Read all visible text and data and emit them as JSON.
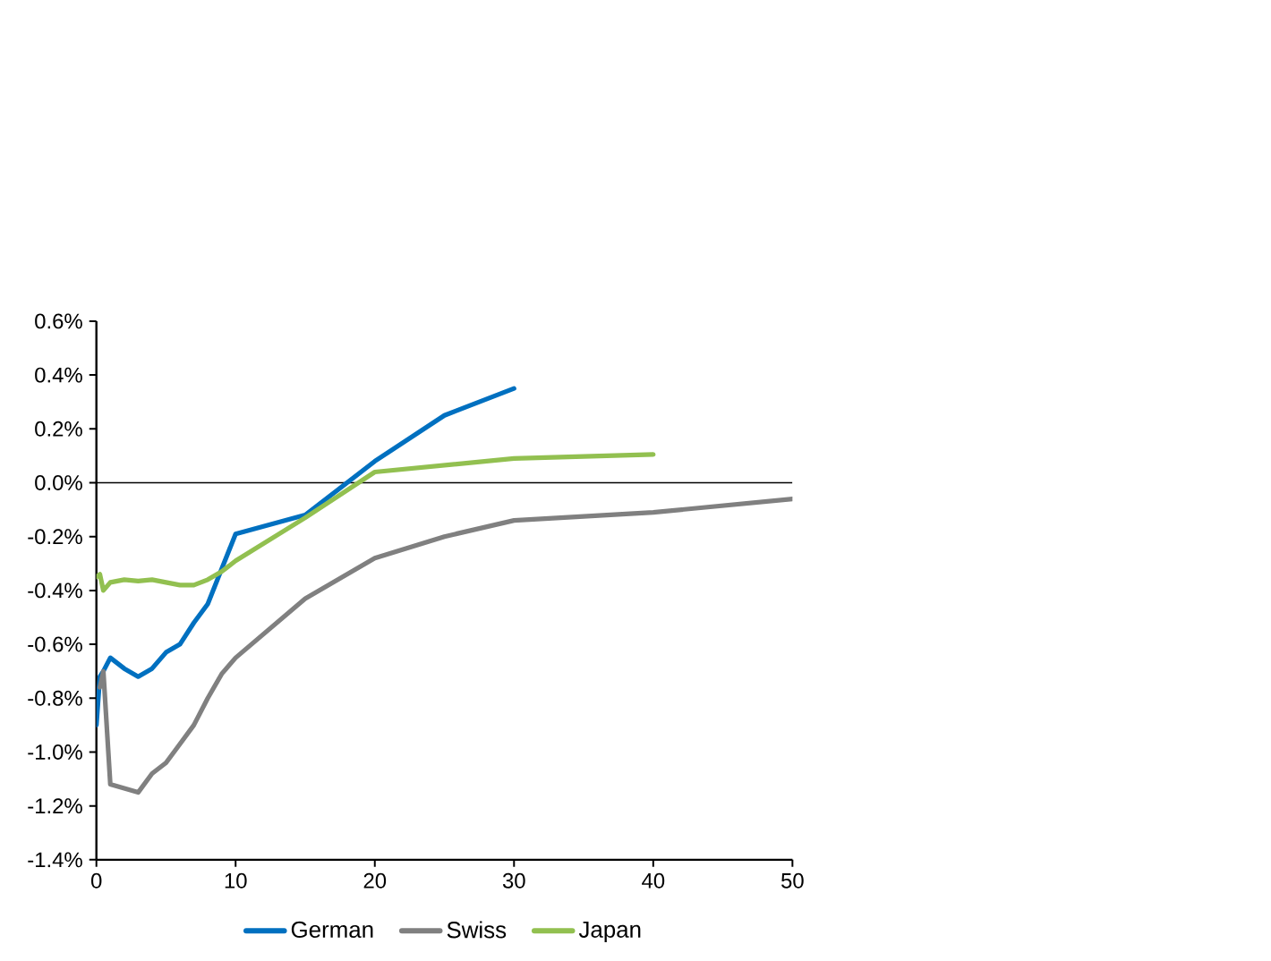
{
  "chart_data": {
    "type": "line",
    "xlim": [
      0,
      50
    ],
    "xticks": [
      0,
      10,
      20,
      30,
      40,
      50
    ],
    "ylim": [
      -1.4,
      0.6
    ],
    "yticks": [
      {
        "value": -1.4,
        "label": "-1.4%"
      },
      {
        "value": -1.2,
        "label": "-1.2%"
      },
      {
        "value": -1.0,
        "label": "-1.0%"
      },
      {
        "value": -0.8,
        "label": "-0.8%"
      },
      {
        "value": -0.6,
        "label": "-0.6%"
      },
      {
        "value": -0.4,
        "label": "-0.4%"
      },
      {
        "value": -0.2,
        "label": "-0.2%"
      },
      {
        "value": 0.0,
        "label": "0.0%"
      },
      {
        "value": 0.2,
        "label": "0.2%"
      },
      {
        "value": 0.4,
        "label": "0.4%"
      },
      {
        "value": 0.6,
        "label": "0.6%"
      }
    ],
    "legend": "bottom",
    "grid": false,
    "marker": "none",
    "line_style": "solid",
    "ref_lines": [
      {
        "axis": "y",
        "value": 0,
        "color": "#000000"
      }
    ],
    "series": [
      {
        "name": "German",
        "color": "#0070c0",
        "x": [
          0,
          0.25,
          0.5,
          1,
          2,
          3,
          4,
          5,
          6,
          7,
          8,
          9,
          10,
          15,
          20,
          25,
          30
        ],
        "values": [
          -0.9,
          -0.72,
          -0.7,
          -0.65,
          -0.69,
          -0.72,
          -0.69,
          -0.63,
          -0.6,
          -0.52,
          -0.45,
          -0.32,
          -0.19,
          -0.12,
          0.08,
          0.25,
          0.35
        ]
      },
      {
        "name": "Swiss",
        "color": "#808080",
        "x": [
          0.25,
          0.5,
          1,
          2,
          3,
          4,
          5,
          6,
          7,
          8,
          9,
          10,
          15,
          20,
          25,
          30,
          40,
          50
        ],
        "values": [
          -0.76,
          -0.7,
          -1.12,
          -1.135,
          -1.15,
          -1.08,
          -1.04,
          -0.97,
          -0.9,
          -0.8,
          -0.71,
          -0.65,
          -0.43,
          -0.28,
          -0.2,
          -0.14,
          -0.11,
          -0.06
        ]
      },
      {
        "name": "Japan",
        "color": "#92c050",
        "x": [
          0,
          0.25,
          0.5,
          1,
          2,
          3,
          4,
          5,
          6,
          7,
          8,
          9,
          10,
          15,
          20,
          30,
          40
        ],
        "values": [
          -0.35,
          -0.34,
          -0.4,
          -0.37,
          -0.36,
          -0.365,
          -0.36,
          -0.37,
          -0.38,
          -0.38,
          -0.36,
          -0.33,
          -0.29,
          -0.13,
          0.04,
          0.09,
          0.105
        ]
      }
    ]
  }
}
